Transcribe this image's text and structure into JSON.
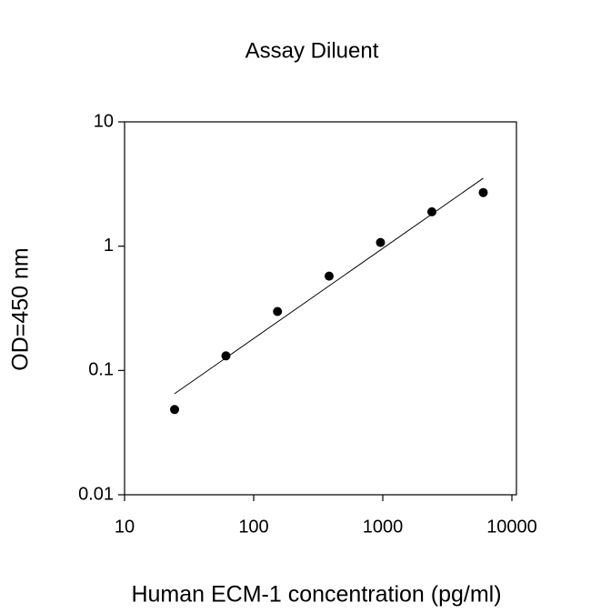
{
  "chart_data": {
    "type": "scatter",
    "title": "Assay Diluent",
    "x_label": "Human ECM-1 concentration (pg/ml)",
    "y_label": "OD=450 nm",
    "x": [
      24.4,
      61,
      153,
      384,
      960,
      2400,
      6000
    ],
    "values": [
      0.0485,
      0.131,
      0.298,
      0.574,
      1.07,
      1.89,
      2.7
    ],
    "color": "#000000",
    "fit_line": {
      "x": [
        24.4,
        6000
      ],
      "values": [
        0.065,
        3.52
      ],
      "color": "#000000"
    },
    "x_log": true,
    "y_log": true,
    "xlim": [
      10,
      10000
    ],
    "xticks": [
      10,
      100,
      1000,
      10000
    ],
    "ylim": [
      0.01,
      10
    ],
    "yticks": [
      0.01,
      0.1,
      1,
      10
    ]
  }
}
